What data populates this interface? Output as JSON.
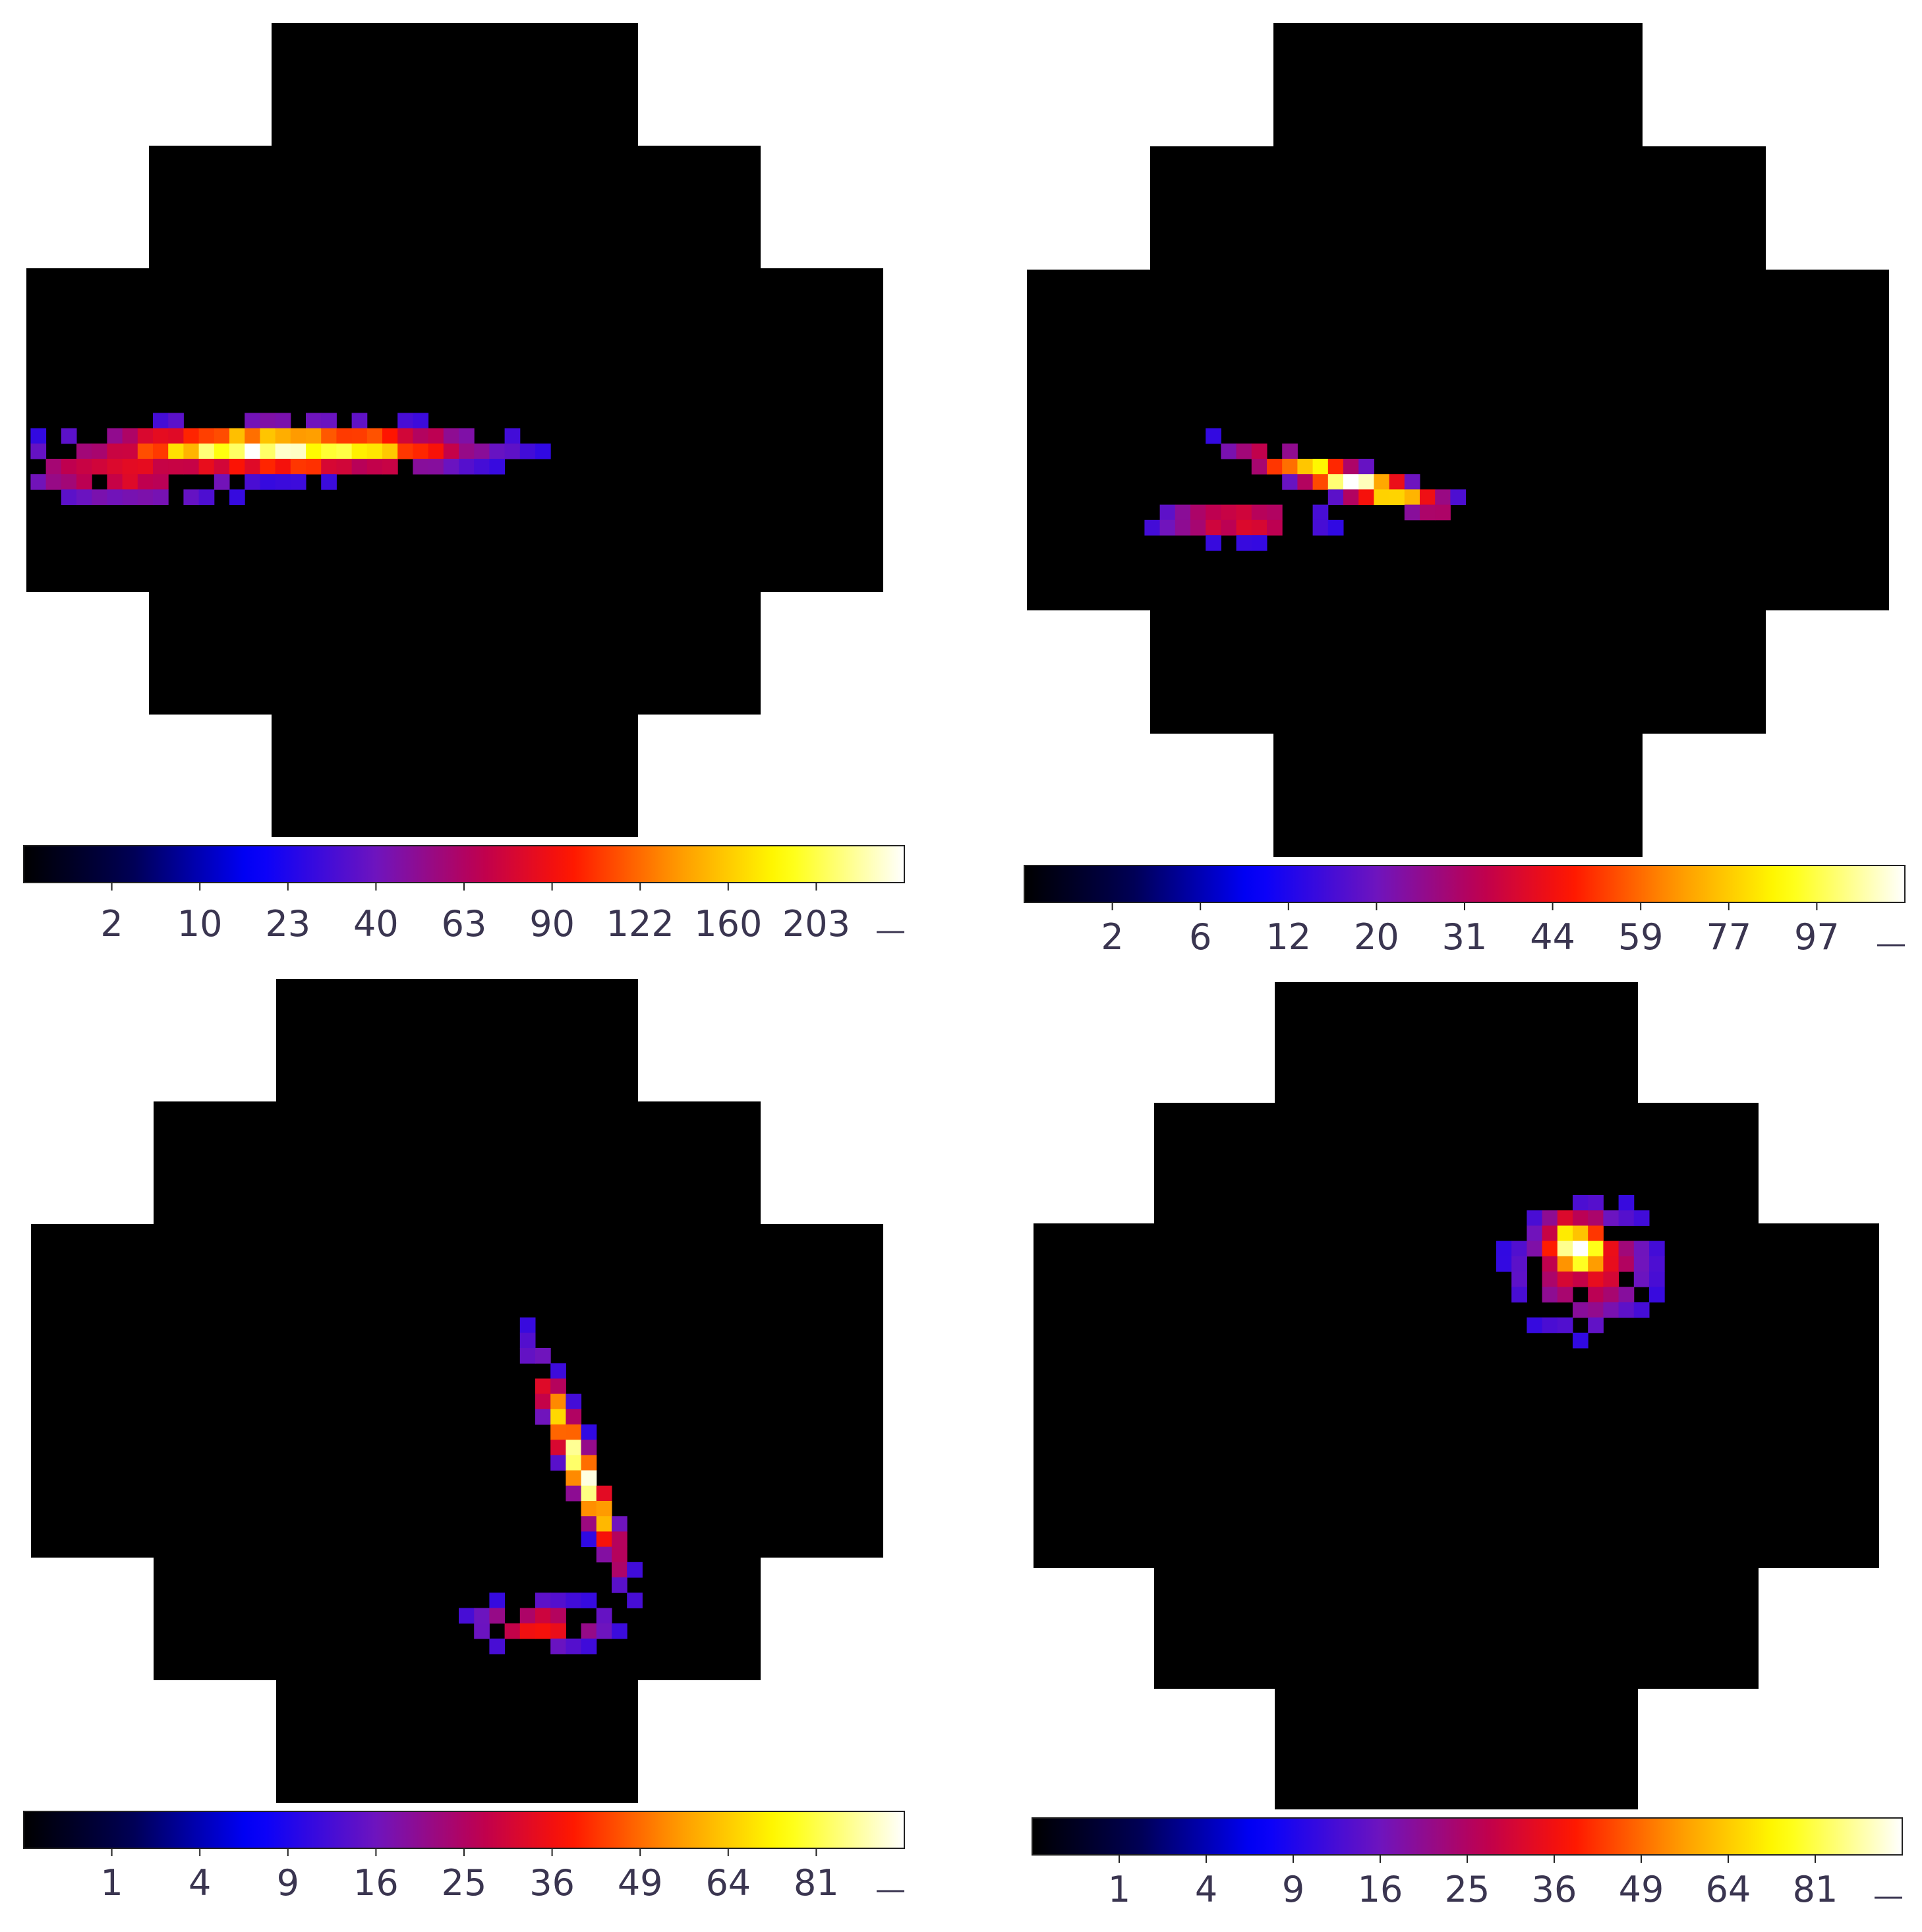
{
  "chart_data": [
    {
      "type": "heatmap",
      "colormap": "gnuplot2-style (black-blue-purple-red-orange-yellow-white)",
      "colorbar": {
        "tick_labels": [
          "2",
          "10",
          "23",
          "40",
          "63",
          "90",
          "122",
          "160",
          "203"
        ]
      },
      "image": "elongated horizontal hot-spot extending in from the left edge"
    },
    {
      "type": "heatmap",
      "colormap": "gnuplot2-style (black-blue-purple-red-orange-yellow-white)",
      "colorbar": {
        "tick_labels": [
          "2",
          "6",
          "12",
          "20",
          "31",
          "44",
          "59",
          "77",
          "97"
        ]
      },
      "image": "thin tilted streak rising to the right"
    },
    {
      "type": "heatmap",
      "colormap": "gnuplot2-style (black-blue-purple-red-orange-yellow-white)",
      "colorbar": {
        "tick_labels": [
          "1",
          "4",
          "9",
          "16",
          "25",
          "36",
          "49",
          "64",
          "81"
        ]
      },
      "image": "near-vertical elongated streak, lower right of center"
    },
    {
      "type": "heatmap",
      "colormap": "gnuplot2-style (black-blue-purple-red-orange-yellow-white)",
      "colorbar": {
        "tick_labels": [
          "1",
          "4",
          "9",
          "16",
          "25",
          "36",
          "49",
          "64",
          "81"
        ]
      },
      "image": "compact round blob, upper right of center"
    }
  ]
}
